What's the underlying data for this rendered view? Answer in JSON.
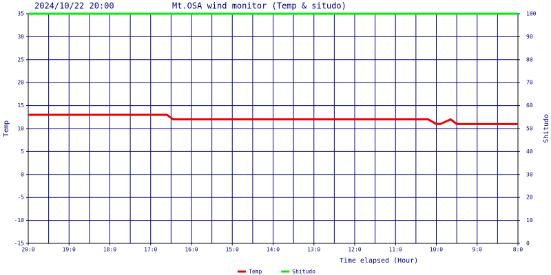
{
  "chart_data": {
    "type": "line",
    "timestamp": "2024/10/22 20:00",
    "title": "Mt.OSA wind monitor (Temp & situdo)",
    "x_label": "Time elapsed (Hour)",
    "y_label": "Temp",
    "y2_label": "Shitudo",
    "x": [
      0,
      3.4,
      3.55,
      9.8,
      10.0,
      10.1,
      10.35,
      10.5,
      12
    ],
    "series": [
      {
        "name": "Temp",
        "color": "#ee0000",
        "values": [
          13,
          13,
          12,
          12,
          11,
          11,
          12,
          11,
          11
        ]
      },
      {
        "name": "Shitudo",
        "color": "#00ee00",
        "axis": "y2",
        "values": [
          100,
          100,
          100,
          100,
          100,
          100,
          100,
          100,
          100
        ]
      }
    ],
    "xlim": [
      0,
      12
    ],
    "xticks": [
      {
        "value": 0,
        "label": "20:0"
      },
      {
        "value": 1,
        "label": "19:0"
      },
      {
        "value": 2,
        "label": "18:0"
      },
      {
        "value": 3,
        "label": "17:0"
      },
      {
        "value": 4,
        "label": "16:0"
      },
      {
        "value": 5,
        "label": "15:0"
      },
      {
        "value": 6,
        "label": "14:0"
      },
      {
        "value": 7,
        "label": "13:0"
      },
      {
        "value": 8,
        "label": "12:0"
      },
      {
        "value": 9,
        "label": "11:0"
      },
      {
        "value": 10,
        "label": "10:0"
      },
      {
        "value": 11,
        "label": "9:0"
      },
      {
        "value": 12,
        "label": "8:0"
      }
    ],
    "minor_xticks": [
      0.5,
      1.5,
      2.5,
      3.5,
      4.5,
      5.5,
      6.5,
      7.5,
      8.5,
      9.5,
      10.5,
      11.5
    ],
    "ylim": [
      -15,
      35
    ],
    "yticks": [
      -15,
      -10,
      -5,
      0,
      5,
      10,
      15,
      20,
      25,
      30,
      35
    ],
    "y2lim": [
      0,
      100
    ],
    "y2ticks": [
      0,
      10,
      20,
      30,
      40,
      50,
      60,
      70,
      80,
      90,
      100
    ],
    "grid": true,
    "grid_color": "#000080",
    "legend": "bottom"
  }
}
